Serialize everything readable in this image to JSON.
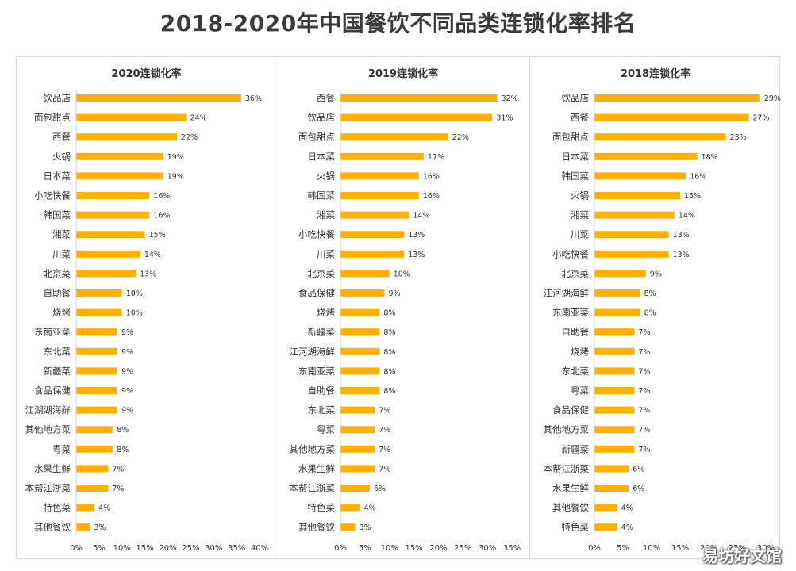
{
  "title": "2018-2020年中国餐饮不同品类连锁化率排名",
  "watermark": "易坊好文馆",
  "bar_color": "#ffb000",
  "chart_data": [
    {
      "type": "bar",
      "orientation": "horizontal",
      "title": "2020连锁化率",
      "categories": [
        "饮品店",
        "面包甜点",
        "西餐",
        "火锅",
        "日本菜",
        "小吃快餐",
        "韩国菜",
        "湘菜",
        "川菜",
        "北京菜",
        "自助餐",
        "烧烤",
        "东南亚菜",
        "东北菜",
        "新疆菜",
        "食品保健",
        "江湖湖海鲜",
        "其他地方菜",
        "粤菜",
        "水果生鲜",
        "本帮江浙菜",
        "特色菜",
        "其他餐饮"
      ],
      "values": [
        36,
        24,
        22,
        19,
        19,
        16,
        16,
        15,
        14,
        13,
        10,
        10,
        9,
        9,
        9,
        9,
        9,
        8,
        8,
        7,
        7,
        4,
        3
      ],
      "value_labels": [
        "36%",
        "24%",
        "22%",
        "19%",
        "19%",
        "16%",
        "16%",
        "15%",
        "14%",
        "13%",
        "10%",
        "10%",
        "9%",
        "9%",
        "9%",
        "9%",
        "9%",
        "8%",
        "8%",
        "7%",
        "7%",
        "4%",
        "3%"
      ],
      "xlim": [
        0,
        40
      ],
      "x_ticks": [
        "0%",
        "5%",
        "10%",
        "15%",
        "20%",
        "25%",
        "30%",
        "35%",
        "40%"
      ]
    },
    {
      "type": "bar",
      "orientation": "horizontal",
      "title": "2019连锁化率",
      "categories": [
        "西餐",
        "饮品店",
        "面包甜点",
        "日本菜",
        "火锅",
        "韩国菜",
        "湘菜",
        "小吃快餐",
        "川菜",
        "北京菜",
        "食品保健",
        "烧烤",
        "新疆菜",
        "江河湖海鲜",
        "东南亚菜",
        "自助餐",
        "东北菜",
        "粤菜",
        "其他地方菜",
        "水果生鲜",
        "本帮江浙菜",
        "特色菜",
        "其他餐饮"
      ],
      "values": [
        32,
        31,
        22,
        17,
        16,
        16,
        14,
        13,
        13,
        10,
        9,
        8,
        8,
        8,
        8,
        8,
        7,
        7,
        7,
        7,
        6,
        4,
        3
      ],
      "value_labels": [
        "32%",
        "31%",
        "22%",
        "17%",
        "16%",
        "16%",
        "14%",
        "13%",
        "13%",
        "10%",
        "9%",
        "8%",
        "8%",
        "8%",
        "8%",
        "8%",
        "7%",
        "7%",
        "7%",
        "7%",
        "6%",
        "4%",
        "3%"
      ],
      "xlim": [
        0,
        35
      ],
      "x_ticks": [
        "0%",
        "5%",
        "10%",
        "15%",
        "20%",
        "25%",
        "30%",
        "35%"
      ]
    },
    {
      "type": "bar",
      "orientation": "horizontal",
      "title": "2018连锁化率",
      "categories": [
        "饮品店",
        "西餐",
        "面包甜点",
        "日本菜",
        "韩国菜",
        "火锅",
        "湘菜",
        "川菜",
        "小吃快餐",
        "北京菜",
        "江河湖海鲜",
        "东南亚菜",
        "自助餐",
        "烧烤",
        "东北菜",
        "粤菜",
        "食品保健",
        "其他地方菜",
        "新疆菜",
        "本帮江浙菜",
        "水果生鲜",
        "其他餐饮",
        "特色菜"
      ],
      "values": [
        29,
        27,
        23,
        18,
        16,
        15,
        14,
        13,
        13,
        9,
        8,
        8,
        7,
        7,
        7,
        7,
        7,
        7,
        7,
        6,
        6,
        4,
        4
      ],
      "value_labels": [
        "29%",
        "27%",
        "23%",
        "18%",
        "16%",
        "15%",
        "14%",
        "13%",
        "13%",
        "9%",
        "8%",
        "8%",
        "7%",
        "7%",
        "7%",
        "7%",
        "7%",
        "7%",
        "7%",
        "6%",
        "6%",
        "4%",
        "4%"
      ],
      "xlim": [
        0,
        30
      ],
      "x_ticks": [
        "0%",
        "5%",
        "10%",
        "15%",
        "20%",
        "25%",
        "30%"
      ]
    }
  ]
}
